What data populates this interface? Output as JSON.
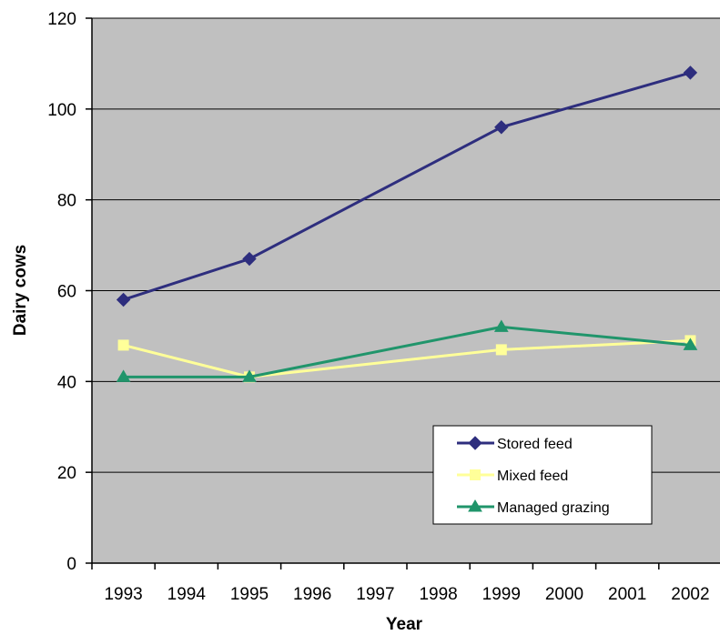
{
  "chart_data": {
    "type": "line",
    "xlabel": "Year",
    "ylabel": "Dairy cows",
    "x_ticks": [
      "1993",
      "1994",
      "1995",
      "1996",
      "1997",
      "1998",
      "1999",
      "2000",
      "2001",
      "2002"
    ],
    "y_ticks": [
      "0",
      "20",
      "40",
      "60",
      "80",
      "100",
      "120"
    ],
    "ylim": [
      0,
      120
    ],
    "xlim": [
      1993,
      2002
    ],
    "grid": true,
    "legend_position": "bottom-right",
    "series": [
      {
        "name": "Stored feed",
        "color": "#2E2E7E",
        "marker": "diamond",
        "points": [
          {
            "x": 1993,
            "y": 58
          },
          {
            "x": 1995,
            "y": 67
          },
          {
            "x": 1999,
            "y": 96
          },
          {
            "x": 2002,
            "y": 108
          }
        ]
      },
      {
        "name": "Mixed feed",
        "color": "#FFFF99",
        "marker": "square",
        "points": [
          {
            "x": 1993,
            "y": 48
          },
          {
            "x": 1995,
            "y": 41
          },
          {
            "x": 1999,
            "y": 47
          },
          {
            "x": 2002,
            "y": 49
          }
        ]
      },
      {
        "name": "Managed grazing",
        "color": "#20956B",
        "marker": "triangle",
        "points": [
          {
            "x": 1993,
            "y": 41
          },
          {
            "x": 1995,
            "y": 41
          },
          {
            "x": 1999,
            "y": 52
          },
          {
            "x": 2002,
            "y": 48
          }
        ]
      }
    ]
  },
  "colors": {
    "plot_background": "#C0C0C0",
    "gridline": "#000000"
  }
}
